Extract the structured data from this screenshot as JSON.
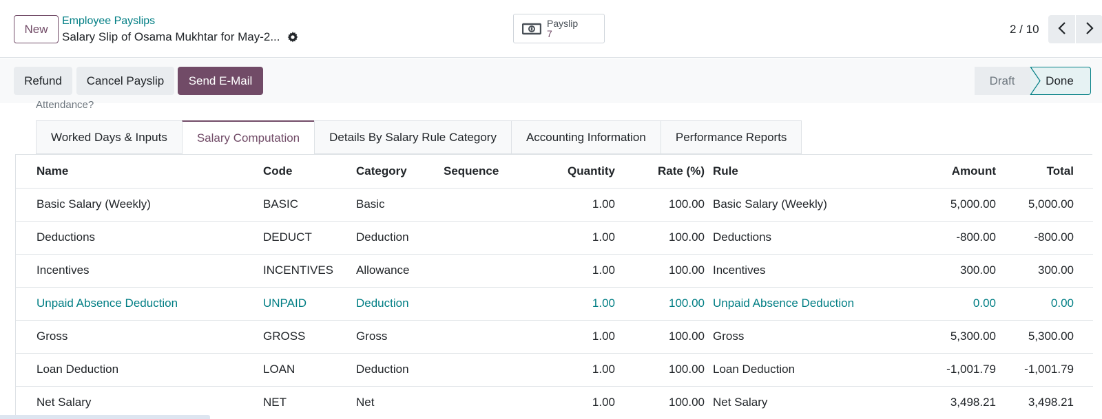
{
  "topbar": {
    "new_label": "New",
    "breadcrumb": "Employee Payslips",
    "record_title": "Salary Slip of Osama Mukhtar for May-2...",
    "smart_button": {
      "label": "Payslip",
      "count": "7",
      "icon": "money-bill-icon"
    },
    "pager": "2 / 10"
  },
  "statusbar": {
    "refund_label": "Refund",
    "cancel_label": "Cancel Payslip",
    "email_label": "Send E-Mail",
    "stages": [
      "Draft",
      "Done"
    ],
    "active_stage": "Done"
  },
  "form": {
    "cut_off_label": "Attendance?",
    "tabs": [
      {
        "label": "Worked Days & Inputs"
      },
      {
        "label": "Salary Computation"
      },
      {
        "label": "Details By Salary Rule Category"
      },
      {
        "label": "Accounting Information"
      },
      {
        "label": "Performance Reports"
      }
    ],
    "active_tab": "Salary Computation"
  },
  "table": {
    "headers": [
      "Name",
      "Code",
      "Category",
      "Sequence",
      "Quantity",
      "Rate (%)",
      "Rule",
      "Amount",
      "Total"
    ],
    "rows": [
      {
        "name": "Basic Salary (Weekly)",
        "code": "BASIC",
        "category": "Basic",
        "sequence": "",
        "quantity": "1.00",
        "rate": "100.00",
        "rule": "Basic Salary (Weekly)",
        "amount": "5,000.00",
        "total": "5,000.00"
      },
      {
        "name": "Deductions",
        "code": "DEDUCT",
        "category": "Deduction",
        "sequence": "",
        "quantity": "1.00",
        "rate": "100.00",
        "rule": "Deductions",
        "amount": "-800.00",
        "total": "-800.00"
      },
      {
        "name": "Incentives",
        "code": "INCENTIVES",
        "category": "Allowance",
        "sequence": "",
        "quantity": "1.00",
        "rate": "100.00",
        "rule": "Incentives",
        "amount": "300.00",
        "total": "300.00"
      },
      {
        "name": "Unpaid Absence Deduction",
        "code": "UNPAID",
        "category": "Deduction",
        "sequence": "",
        "quantity": "1.00",
        "rate": "100.00",
        "rule": "Unpaid Absence Deduction",
        "amount": "0.00",
        "total": "0.00"
      },
      {
        "name": "Gross",
        "code": "GROSS",
        "category": "Gross",
        "sequence": "",
        "quantity": "1.00",
        "rate": "100.00",
        "rule": "Gross",
        "amount": "5,300.00",
        "total": "5,300.00"
      },
      {
        "name": "Loan Deduction",
        "code": "LOAN",
        "category": "Deduction",
        "sequence": "",
        "quantity": "1.00",
        "rate": "100.00",
        "rule": "Loan Deduction",
        "amount": "-1,001.79",
        "total": "-1,001.79"
      },
      {
        "name": "Net Salary",
        "code": "NET",
        "category": "Net",
        "sequence": "",
        "quantity": "1.00",
        "rate": "100.00",
        "rule": "Net Salary",
        "amount": "3,498.21",
        "total": "3,498.21"
      }
    ]
  },
  "colors": {
    "brand": "#714b67",
    "link": "#017e84",
    "border": "#dee2e6"
  }
}
